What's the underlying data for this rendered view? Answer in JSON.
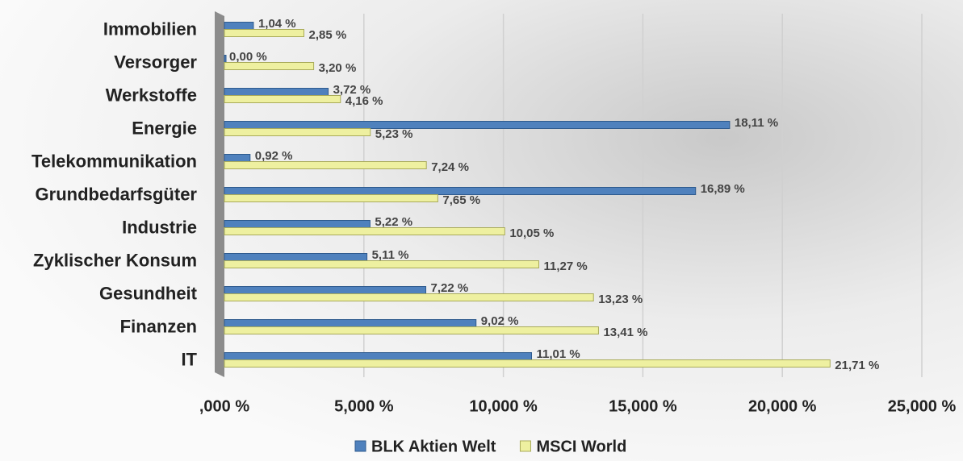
{
  "chart_data": {
    "type": "bar",
    "orientation": "horizontal",
    "categories": [
      "Immobilien",
      "Versorger",
      "Werkstoffe",
      "Energie",
      "Telekommunikation",
      "Grundbedarfsgüter",
      "Industrie",
      "Zyklischer Konsum",
      "Gesundheit",
      "Finanzen",
      "IT"
    ],
    "series": [
      {
        "name": "BLK Aktien Welt",
        "color": "#4f81bd",
        "values": [
          1.04,
          0.0,
          3.72,
          18.11,
          0.92,
          16.89,
          5.22,
          5.11,
          7.22,
          9.02,
          11.01
        ],
        "value_labels": [
          "1,04 %",
          "0,00 %",
          "3,72 %",
          "18,11 %",
          "0,92 %",
          "16,89 %",
          "5,22 %",
          "5,11 %",
          "7,22 %",
          "9,02 %",
          "11,01 %"
        ]
      },
      {
        "name": "MSCI World",
        "color": "#eef0a0",
        "values": [
          2.85,
          3.2,
          4.16,
          5.23,
          7.24,
          7.65,
          10.05,
          11.27,
          13.23,
          13.41,
          21.71
        ],
        "value_labels": [
          "2,85 %",
          "3,20 %",
          "4,16 %",
          "5,23 %",
          "7,24 %",
          "7,65 %",
          "10,05 %",
          "11,27 %",
          "13,23 %",
          "13,41 %",
          "21,71 %"
        ]
      }
    ],
    "xlim": [
      0,
      25
    ],
    "xticks": [
      {
        "value": 0,
        "label": ",000 %"
      },
      {
        "value": 5,
        "label": "5,000 %"
      },
      {
        "value": 10,
        "label": "10,000 %"
      },
      {
        "value": 15,
        "label": "15,000 %"
      },
      {
        "value": 20,
        "label": "20,000 %"
      },
      {
        "value": 25,
        "label": "25,000 %"
      }
    ],
    "grid": true
  }
}
